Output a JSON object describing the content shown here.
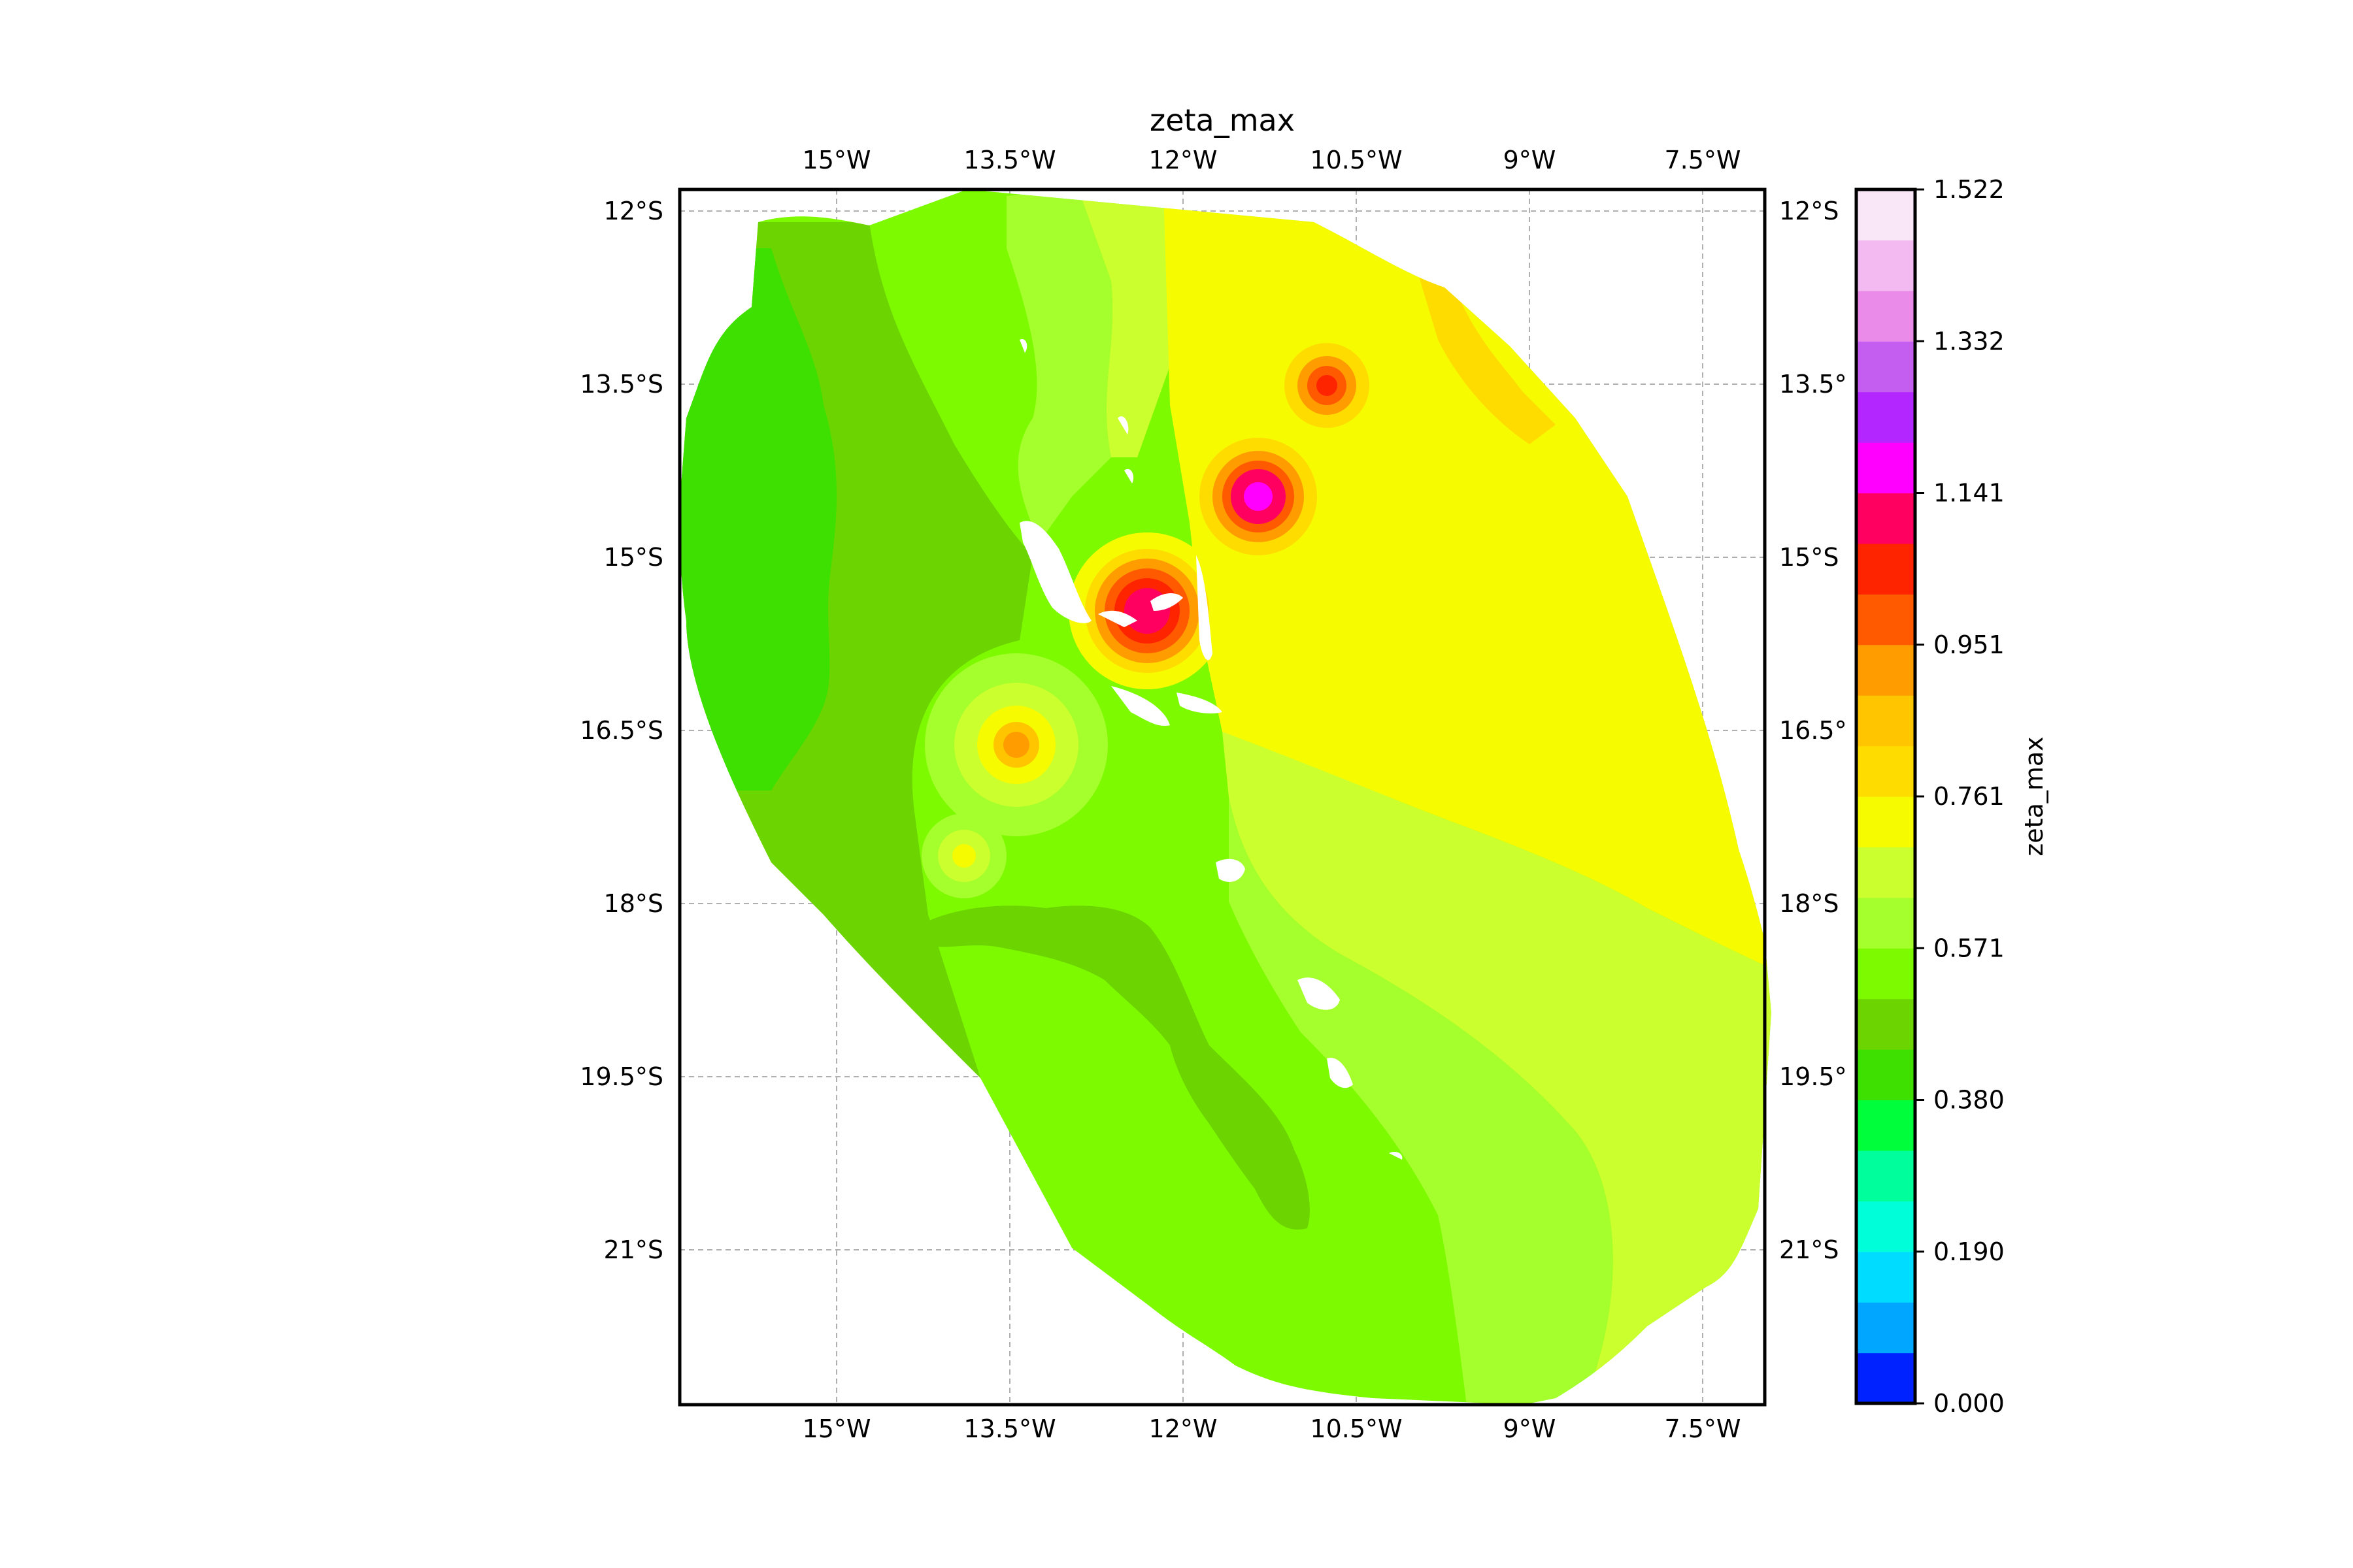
{
  "title": "zeta_max",
  "colorbar": {
    "label": "zeta_max",
    "tick_labels": [
      "0.000",
      "0.190",
      "0.380",
      "0.571",
      "0.761",
      "0.951",
      "1.141",
      "1.332",
      "1.522"
    ],
    "levels": [
      "#0022ff",
      "#00a6ff",
      "#00dcff",
      "#00ffd8",
      "#00ff9c",
      "#00ff3a",
      "#3de000",
      "#6cd400",
      "#7dfa00",
      "#a4ff2d",
      "#cbff2e",
      "#f6fb00",
      "#ffdc00",
      "#ffc600",
      "#ff9c00",
      "#ff5a00",
      "#ff2400",
      "#ff0060",
      "#ff00ff",
      "#b426ff",
      "#c35ef0",
      "#ea8bea",
      "#f2baf0",
      "#f9e6f7"
    ]
  },
  "axes": {
    "x_ticks": [
      "15°W",
      "13.5°W",
      "12°W",
      "10.5°W",
      "9°W",
      "7.5°W"
    ],
    "y_ticks_left": [
      "12°S",
      "13.5°S",
      "15°S",
      "16.5°S",
      "18°S",
      "19.5°S",
      "21°S"
    ],
    "y_ticks_right": [
      "12°S",
      "13.5°",
      "15°S",
      "16.5°",
      "18°S",
      "19.5°",
      "21°S"
    ]
  },
  "chart_data": {
    "type": "heatmap",
    "title": "zeta_max",
    "variable": "zeta_max",
    "x_ticks": [
      -15,
      -13.5,
      -12,
      -10.5,
      -9,
      -7.5
    ],
    "y_ticks": [
      -12,
      -13.5,
      -15,
      -16.5,
      -18,
      -19.5,
      -21
    ],
    "xlim": [
      -16.4,
      -7.0
    ],
    "ylim": [
      -22.3,
      -11.8
    ],
    "color_range": [
      0.0,
      1.522
    ],
    "grid": true,
    "legend": "colorbar right",
    "local_maxima": [
      {
        "lon": -12.3,
        "lat": -15.4,
        "value": 1.2
      },
      {
        "lon": -11.3,
        "lat": -14.2,
        "value": 1.2
      },
      {
        "lon": -10.6,
        "lat": -13.5,
        "value": 1.1
      },
      {
        "lon": -13.5,
        "lat": -16.6,
        "value": 0.9
      },
      {
        "lon": -14.0,
        "lat": -17.5,
        "value": 0.8
      }
    ]
  }
}
